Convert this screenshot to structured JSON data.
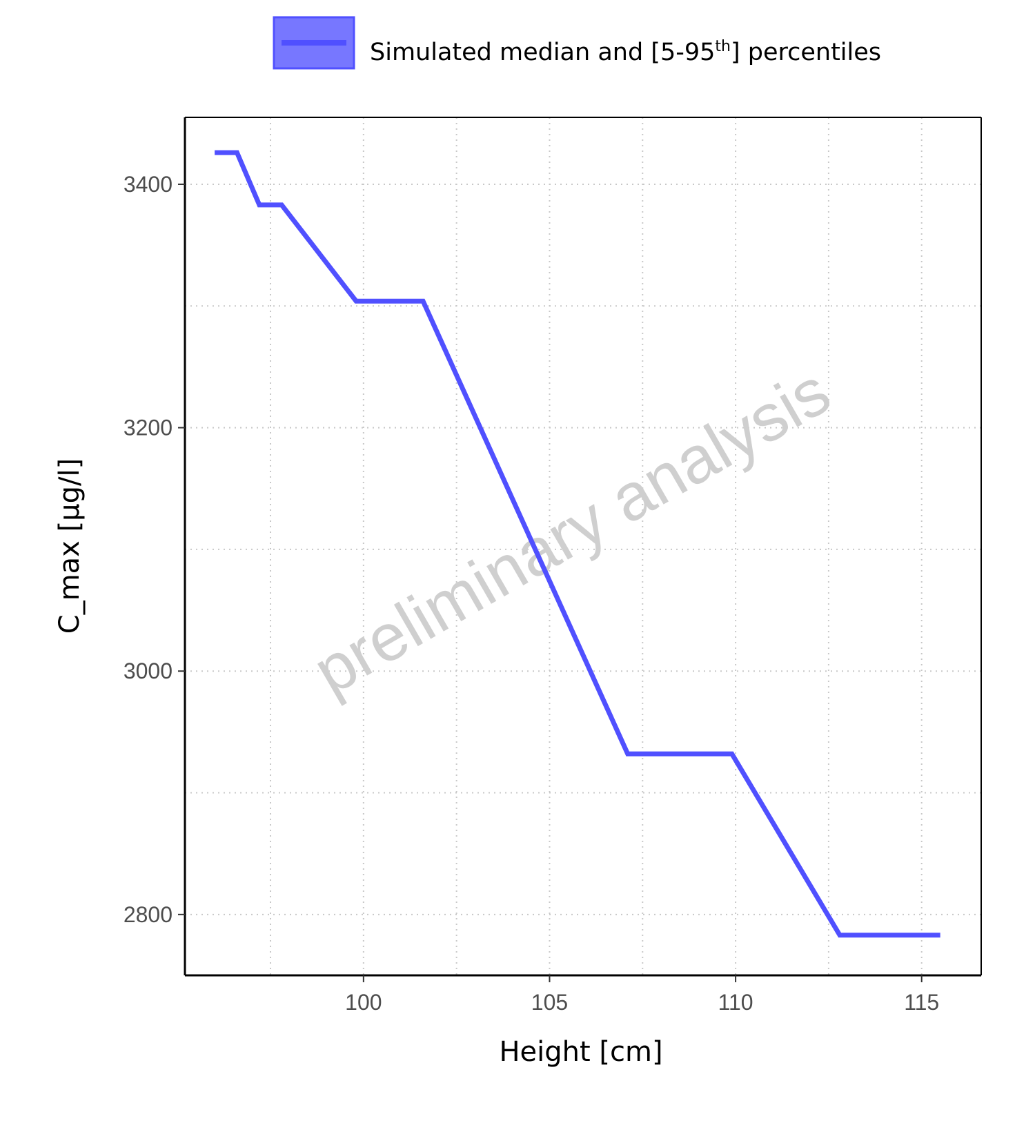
{
  "chart_data": {
    "type": "line",
    "xlabel": "Height [cm]",
    "ylabel": "C_max [µg/l]",
    "xlim": [
      95.2,
      116.6
    ],
    "ylim": [
      2750,
      3455
    ],
    "x_ticks": [
      100,
      105,
      110,
      115
    ],
    "y_ticks": [
      2800,
      3000,
      3200,
      3400
    ],
    "grid": true,
    "legend_position": "top",
    "series": [
      {
        "name": "Simulated median and [5-95th] percentiles",
        "color": "#5050ff",
        "x": [
          96.0,
          96.6,
          97.2,
          97.8,
          99.8,
          101.6,
          107.1,
          109.9,
          112.8,
          115.5
        ],
        "y": [
          3426,
          3426,
          3383,
          3383,
          3304,
          3304,
          2932,
          2932,
          2783,
          2783
        ]
      }
    ]
  },
  "legend": {
    "text_main": "Simulated median and [5-95",
    "text_sup": "th",
    "text_end": "] percentiles",
    "swatch_fill": "#7777ff",
    "swatch_border": "#5050ff"
  },
  "watermark": {
    "text": "preliminary analysis"
  }
}
